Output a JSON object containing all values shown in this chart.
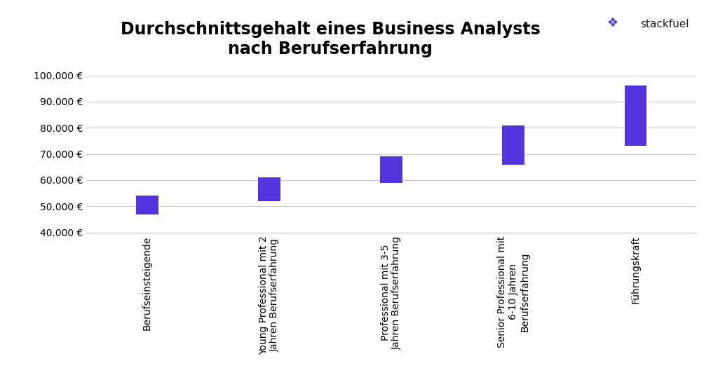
{
  "title_line1": "Durchschnittsgehalt eines Business Analysts",
  "title_line2": "nach Berufserfahrung",
  "categories": [
    "Berufseinsteigende",
    "Young Professional mit 2\nJahren Berufserfahrung",
    "Professional mit 3-5\nJahren Berufserfahrung",
    "Senior Professional mit\n6-10 Jahren\nBerufserfahrung",
    "Führungskraft"
  ],
  "bar_bottoms": [
    47000,
    52000,
    59000,
    66000,
    73000
  ],
  "bar_tops": [
    54000,
    61000,
    69000,
    81000,
    96000
  ],
  "bar_color": "#5533DD",
  "ylim": [
    40000,
    103000
  ],
  "yticks": [
    40000,
    50000,
    60000,
    70000,
    80000,
    90000,
    100000
  ],
  "background_color": "#ffffff",
  "grid_color": "#cccccc",
  "title_fontsize": 17,
  "tick_fontsize": 10,
  "bar_width": 0.18
}
